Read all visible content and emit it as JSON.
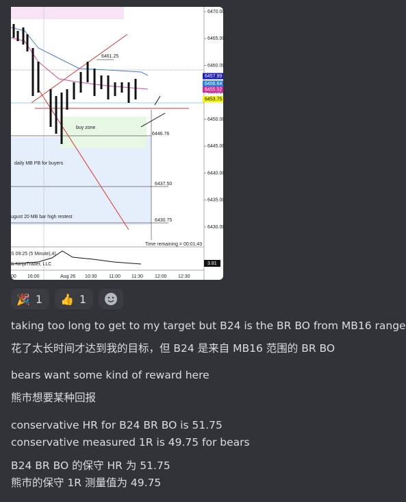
{
  "chart_image": {
    "price_axis": [
      "6470.00",
      "6465.00",
      "6460.00",
      "6455.00",
      "6450.00",
      "6445.00",
      "6440.00",
      "6435.00",
      "6430.00"
    ],
    "price_tags": [
      {
        "label": "6457.99",
        "color": "#1d1dbf"
      },
      {
        "label": "6456.64",
        "color": "#2a7fd6"
      },
      {
        "label": "6455.52",
        "color": "#d62a9a"
      },
      {
        "label": "6453.75",
        "color": "#f4f400"
      }
    ],
    "level_labels": [
      "6461.25",
      "6446.76",
      "6437.50",
      "6430.75"
    ],
    "annotations": [
      "buy zone",
      "daily MB PB for buyers",
      "ugust 20  MB bar high restest",
      "Time remaining = 00:01:43"
    ],
    "indicator_label": "S 09:25 (5 Minute),4)",
    "copyright": "S NinjaTrader, LLC",
    "indicator_tag": "3.81",
    "time_axis": [
      "00",
      "16:00",
      "Aug 26",
      "10:30",
      "11:00",
      "11:30",
      "12:00",
      "12:30"
    ]
  },
  "reactions": [
    {
      "emoji": "🎉",
      "count": 1
    },
    {
      "emoji": "👍",
      "count": 1
    }
  ],
  "messages": [
    [
      "taking too long to get to my target but B24 is the BR BO from MB16 range",
      "花了太长时间才达到我的目标，但 B24 是来自 MB16 范围的 BR BO"
    ],
    [
      "bears want some kind of reward here",
      "熊市想要某种回报"
    ],
    [
      "conservative HR for B24 BR BO is 51.75",
      "conservative measured 1R is 49.75 for bears"
    ],
    [
      "B24 BR BO 的保守 HR 为 51.75",
      "熊市的保守 1R 测量值为 49.75"
    ]
  ]
}
